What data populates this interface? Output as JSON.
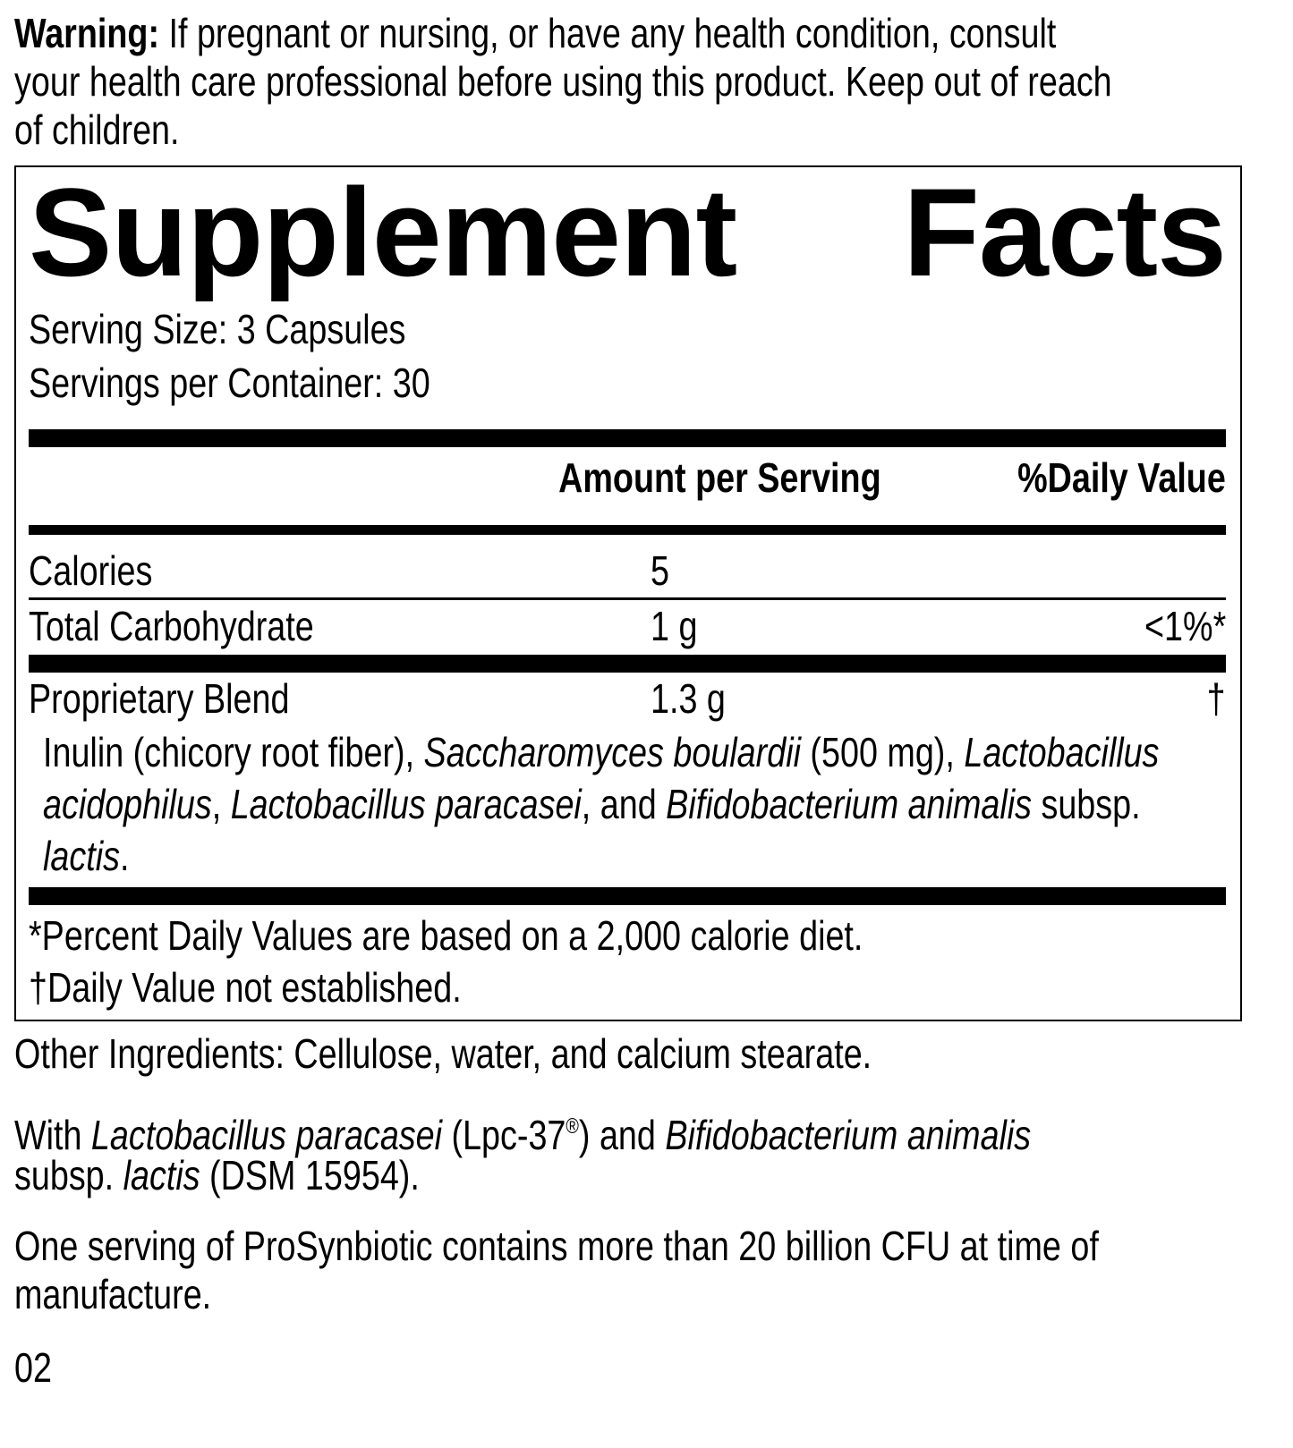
{
  "warning": {
    "label": "Warning:",
    "lines": [
      "If pregnant or nursing, or have any health condition, consult",
      "your health care professional before using this product. Keep out of reach",
      "of children."
    ]
  },
  "facts": {
    "title_word1": "Supplement",
    "title_word2": "Facts",
    "serving_size": "Serving Size: 3 Capsules",
    "servings_per_container": "Servings per Container: 30",
    "header_amount": "Amount per Serving",
    "header_dv": "%Daily Value",
    "rows": [
      {
        "name": "Calories",
        "amount": "5",
        "dv": ""
      },
      {
        "name": "Total Carbohydrate",
        "amount": "1 g",
        "dv": "<1%*"
      },
      {
        "name": "Proprietary Blend",
        "amount": "1.3 g",
        "dv": "†"
      }
    ],
    "blend_lines": [
      [
        {
          "t": "Inulin (chicory root fiber), "
        },
        {
          "t": "Saccharomyces boulardii",
          "i": true
        },
        {
          "t": " (500 mg), "
        },
        {
          "t": "Lactobacillus",
          "i": true
        }
      ],
      [
        {
          "t": "acidophilus",
          "i": true
        },
        {
          "t": ", "
        },
        {
          "t": "Lactobacillus paracasei",
          "i": true
        },
        {
          "t": ", and "
        },
        {
          "t": "Bifidobacterium animalis",
          "i": true
        },
        {
          "t": " subsp."
        }
      ],
      [
        {
          "t": "lactis",
          "i": true
        },
        {
          "t": "."
        }
      ]
    ],
    "footnote1": "*Percent Daily Values are based on a 2,000 calorie diet.",
    "footnote2": "†Daily Value not established."
  },
  "other_ingredients": "Other Ingredients: Cellulose, water, and calcium stearate.",
  "with_lines": [
    [
      {
        "t": "With "
      },
      {
        "t": "Lactobacillus paracasei",
        "i": true
      },
      {
        "t": " (Lpc-37"
      },
      {
        "t": "®",
        "sup": true
      },
      {
        "t": ") and "
      },
      {
        "t": "Bifidobacterium animalis",
        "i": true
      }
    ],
    [
      {
        "t": "subsp. "
      },
      {
        "t": "lactis",
        "i": true
      },
      {
        "t": " (DSM 15954)."
      }
    ]
  ],
  "cfu_lines": [
    "One serving of ProSynbiotic contains more than 20 billion CFU at time of",
    "manufacture."
  ],
  "page_code": "02"
}
